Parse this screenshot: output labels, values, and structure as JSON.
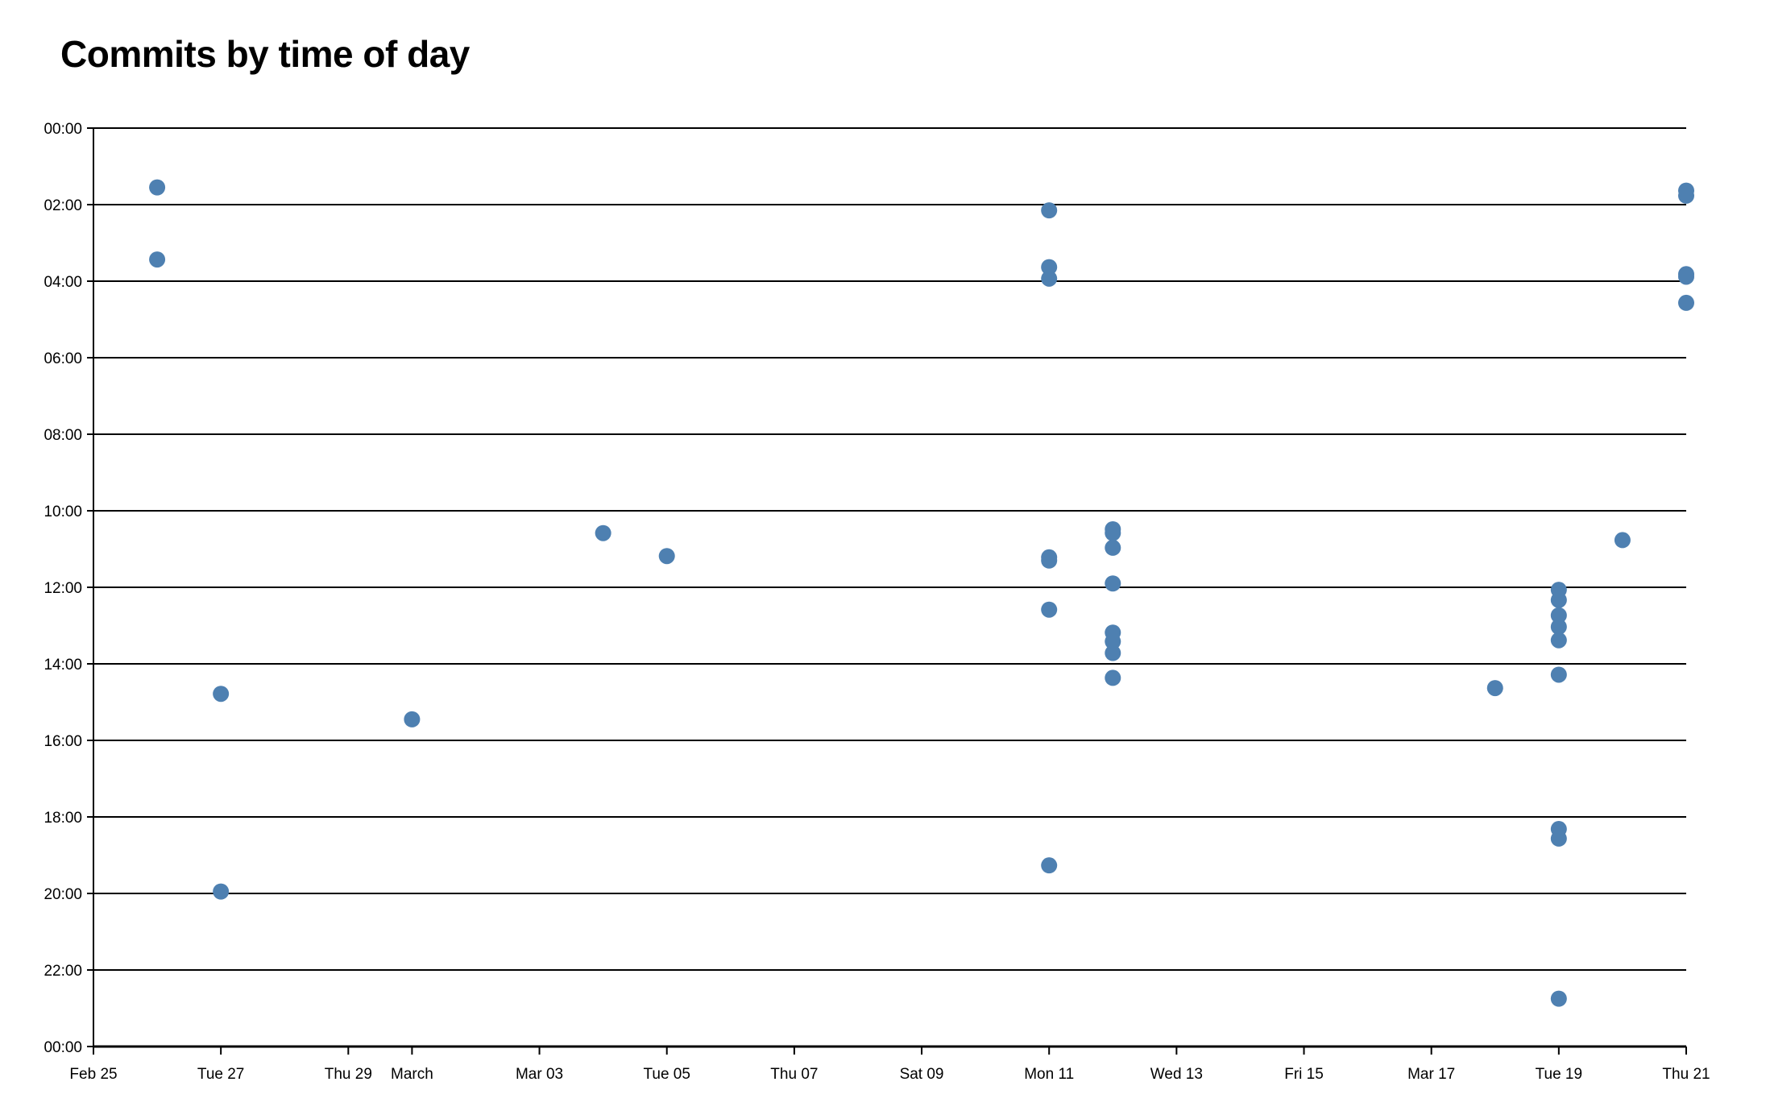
{
  "chart_data": {
    "type": "scatter",
    "title": "Commits by time of day",
    "xlabel": "",
    "ylabel": "",
    "xlim": [
      "Feb 25",
      "Mar 21"
    ],
    "ylim": [
      "00:00",
      "24:00"
    ],
    "y_inverted": true,
    "grid": "horizontal",
    "point_color": "#4e80b1",
    "x_ticks": [
      {
        "date": "Feb 25",
        "label": "Feb 25"
      },
      {
        "date": "Feb 27",
        "label": "Tue 27"
      },
      {
        "date": "Feb 29",
        "label": "Thu 29"
      },
      {
        "date": "Mar 01",
        "label": "March"
      },
      {
        "date": "Mar 03",
        "label": "Mar 03"
      },
      {
        "date": "Mar 05",
        "label": "Tue 05"
      },
      {
        "date": "Mar 07",
        "label": "Thu 07"
      },
      {
        "date": "Mar 09",
        "label": "Sat 09"
      },
      {
        "date": "Mar 11",
        "label": "Mon 11"
      },
      {
        "date": "Mar 13",
        "label": "Wed 13"
      },
      {
        "date": "Mar 15",
        "label": "Fri 15"
      },
      {
        "date": "Mar 17",
        "label": "Mar 17"
      },
      {
        "date": "Mar 19",
        "label": "Tue 19"
      },
      {
        "date": "Mar 21",
        "label": "Thu 21"
      }
    ],
    "y_ticks": [
      "00:00",
      "02:00",
      "04:00",
      "06:00",
      "08:00",
      "10:00",
      "12:00",
      "14:00",
      "16:00",
      "18:00",
      "20:00",
      "22:00",
      "00:00"
    ],
    "points": [
      {
        "date": "Feb 26",
        "time": "01:33"
      },
      {
        "date": "Feb 26",
        "time": "03:26"
      },
      {
        "date": "Feb 27",
        "time": "14:47"
      },
      {
        "date": "Feb 27",
        "time": "19:57"
      },
      {
        "date": "Mar 01",
        "time": "15:27"
      },
      {
        "date": "Mar 04",
        "time": "10:35"
      },
      {
        "date": "Mar 05",
        "time": "11:11"
      },
      {
        "date": "Mar 11",
        "time": "02:09"
      },
      {
        "date": "Mar 11",
        "time": "03:38"
      },
      {
        "date": "Mar 11",
        "time": "03:56"
      },
      {
        "date": "Mar 11",
        "time": "11:13"
      },
      {
        "date": "Mar 11",
        "time": "11:18"
      },
      {
        "date": "Mar 11",
        "time": "12:35"
      },
      {
        "date": "Mar 11",
        "time": "19:16"
      },
      {
        "date": "Mar 12",
        "time": "10:29"
      },
      {
        "date": "Mar 12",
        "time": "10:35"
      },
      {
        "date": "Mar 12",
        "time": "10:58"
      },
      {
        "date": "Mar 12",
        "time": "11:54"
      },
      {
        "date": "Mar 12",
        "time": "13:11"
      },
      {
        "date": "Mar 12",
        "time": "13:25"
      },
      {
        "date": "Mar 12",
        "time": "13:43"
      },
      {
        "date": "Mar 12",
        "time": "14:22"
      },
      {
        "date": "Mar 18",
        "time": "14:38"
      },
      {
        "date": "Mar 19",
        "time": "12:04"
      },
      {
        "date": "Mar 19",
        "time": "12:20"
      },
      {
        "date": "Mar 19",
        "time": "12:44"
      },
      {
        "date": "Mar 19",
        "time": "13:02"
      },
      {
        "date": "Mar 19",
        "time": "13:23"
      },
      {
        "date": "Mar 19",
        "time": "14:17"
      },
      {
        "date": "Mar 19",
        "time": "18:19"
      },
      {
        "date": "Mar 19",
        "time": "18:34"
      },
      {
        "date": "Mar 19",
        "time": "22:45"
      },
      {
        "date": "Mar 20",
        "time": "10:46"
      },
      {
        "date": "Mar 21",
        "time": "01:38"
      },
      {
        "date": "Mar 21",
        "time": "01:46"
      },
      {
        "date": "Mar 21",
        "time": "03:49"
      },
      {
        "date": "Mar 21",
        "time": "03:53"
      },
      {
        "date": "Mar 21",
        "time": "04:34"
      }
    ]
  }
}
